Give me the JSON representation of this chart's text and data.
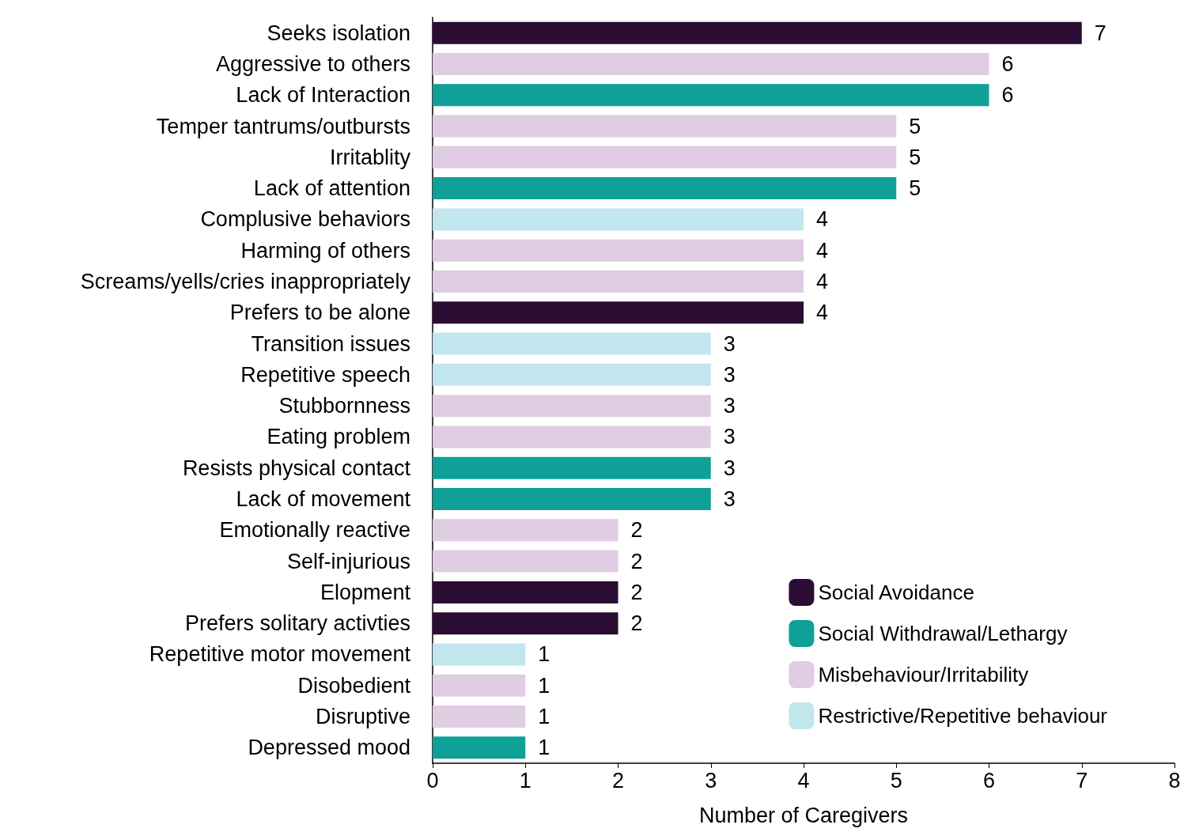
{
  "chart_data": {
    "type": "bar",
    "orientation": "horizontal",
    "xlabel": "Number of Caregivers",
    "categories": [
      "Seeks isolation",
      "Aggressive to others",
      "Lack of Interaction",
      "Temper tantrums/outbursts",
      "Irritablity",
      "Lack of attention",
      "Complusive behaviors",
      "Harming of others",
      "Screams/yells/cries inappropriately",
      "Prefers to be alone",
      "Transition issues",
      "Repetitive speech",
      "Stubbornness",
      "Eating problem",
      "Resists physical contact",
      "Lack of movement",
      "Emotionally reactive",
      "Self-injurious",
      "Elopment",
      "Prefers solitary activties",
      "Repetitive motor movement",
      "Disobedient",
      "Disruptive",
      "Depressed mood"
    ],
    "series": [
      {
        "name": "Social Avoidance",
        "color": "#2b0c33",
        "values": [
          7,
          null,
          null,
          null,
          null,
          null,
          null,
          null,
          null,
          4,
          null,
          null,
          null,
          null,
          null,
          null,
          null,
          null,
          2,
          2,
          null,
          null,
          null,
          null
        ]
      },
      {
        "name": "Social Withdrawal/Lethargy",
        "color": "#0fa098",
        "values": [
          null,
          null,
          6,
          null,
          null,
          5,
          null,
          null,
          null,
          null,
          null,
          null,
          null,
          null,
          3,
          3,
          null,
          null,
          null,
          null,
          null,
          null,
          null,
          1
        ]
      },
      {
        "name": "Misbehaviour/Irritability",
        "color": "#e0cce3",
        "values": [
          null,
          6,
          null,
          5,
          5,
          null,
          null,
          4,
          4,
          null,
          null,
          null,
          3,
          3,
          null,
          null,
          2,
          2,
          null,
          null,
          null,
          1,
          1,
          null
        ]
      },
      {
        "name": "Restrictive/Repetitive behaviour",
        "color": "#c2e6ee",
        "values": [
          null,
          null,
          null,
          null,
          null,
          null,
          4,
          null,
          null,
          null,
          3,
          3,
          null,
          null,
          null,
          null,
          null,
          null,
          null,
          null,
          1,
          null,
          null,
          null
        ]
      }
    ],
    "xlim": [
      0,
      8
    ],
    "xticks": [
      0,
      1,
      2,
      3,
      4,
      5,
      6,
      7,
      8
    ],
    "data_labels": true,
    "legend": "bottom right",
    "grid": false
  }
}
